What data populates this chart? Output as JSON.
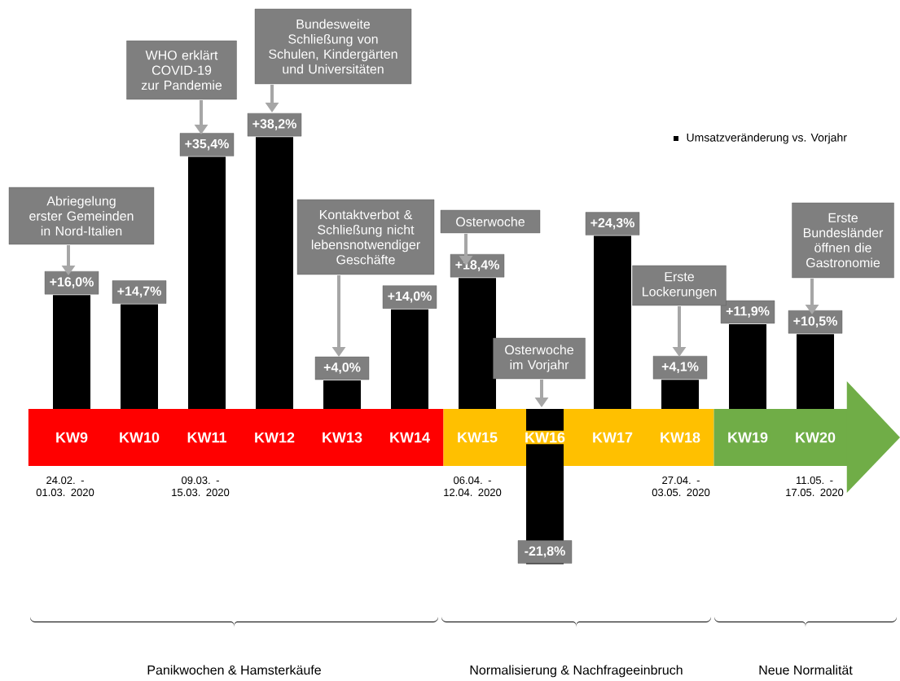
{
  "chart_data": {
    "type": "bar",
    "categories": [
      "KW9",
      "KW10",
      "KW11",
      "KW12",
      "KW13",
      "KW14",
      "KW15",
      "KW16",
      "KW17",
      "KW18",
      "KW19",
      "KW20"
    ],
    "series": [
      {
        "name": "Umsatzveränderung vs. Vorjahr",
        "color": "#000000",
        "values": [
          16.0,
          14.7,
          35.4,
          38.2,
          4.0,
          14.0,
          18.4,
          -21.8,
          24.3,
          4.1,
          11.9,
          10.5
        ],
        "value_labels": [
          "+16,0%",
          "+14,7%",
          "+35,4%",
          "+38,2%",
          "+4,0%",
          "+14,0%",
          "+18,4%",
          "-21,8%",
          "+24,3%",
          "+4,1%",
          "+11,9%",
          "+10,5%"
        ]
      }
    ],
    "legend": "top right",
    "annotations": [
      "Abriegelung erster Gemeinden in Nord-Italien",
      "WHO erklärt COVID-19 zur Pandemie",
      "Bundesweite Schließung von Schulen, Kindergärten und Universitäten",
      "Kontaktverbot & Schließung nicht lebensnotwendiger Geschäfte",
      "Osterwoche",
      "Osterwoche im Vorjahr",
      "Erste Lockerungen",
      "Erste Bundesländer öffnen die Gastronomie",
      "24.02. - 01.03. 2020",
      "09.03. - 15.03. 2020",
      "06.04. - 12.04. 2020",
      "27.04. - 03.05. 2020",
      "11.05. - 17.05. 2020",
      "Panikwochen & Hamsterkäufe",
      "Normalisierung & Nachfrageeinbruch",
      "Neue Normalität"
    ],
    "bands": [
      {
        "axis": "x",
        "from": "KW9",
        "to": "KW14",
        "color": "#ff0000"
      },
      {
        "axis": "x",
        "from": "KW15",
        "to": "KW18",
        "color": "#ffc000"
      },
      {
        "axis": "x",
        "from": "KW19",
        "to": "KW20",
        "color": "#70ad47"
      }
    ]
  }
}
